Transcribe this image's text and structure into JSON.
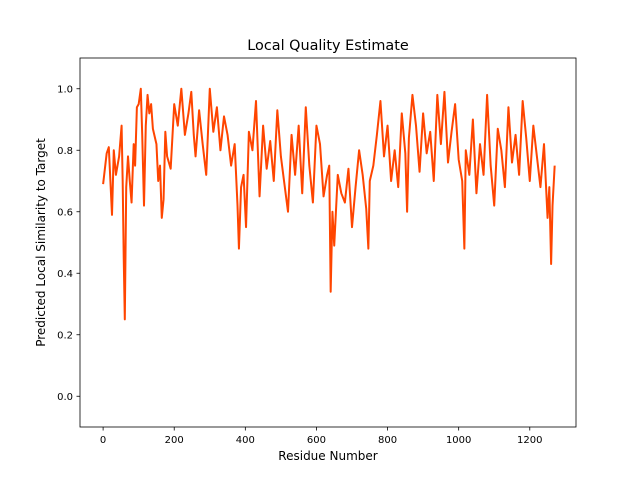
{
  "chart_data": {
    "type": "line",
    "title": "Local Quality Estimate",
    "xlabel": "Residue Number",
    "ylabel": "Predicted Local Similarity to Target",
    "xlim": [
      -65,
      1330
    ],
    "ylim": [
      -0.1,
      1.1
    ],
    "xticks": [
      0,
      200,
      400,
      600,
      800,
      1000,
      1200
    ],
    "yticks": [
      0.0,
      0.2,
      0.4,
      0.6,
      0.8,
      1.0
    ],
    "xtick_labels": [
      "0",
      "200",
      "400",
      "600",
      "800",
      "1000",
      "1200"
    ],
    "ytick_labels": [
      "0.0",
      "0.2",
      "0.4",
      "0.6",
      "0.8",
      "1.0"
    ],
    "grid": false,
    "series": [
      {
        "color": "#ff4500",
        "x": [
          0,
          10,
          16,
          25,
          30,
          36,
          45,
          52,
          55,
          58,
          61,
          65,
          70,
          75,
          80,
          86,
          90,
          95,
          100,
          106,
          110,
          115,
          120,
          125,
          130,
          135,
          140,
          150,
          155,
          160,
          165,
          170,
          175,
          180,
          190,
          200,
          210,
          220,
          230,
          240,
          248,
          255,
          260,
          270,
          280,
          290,
          300,
          310,
          320,
          330,
          340,
          350,
          360,
          370,
          378,
          382,
          388,
          395,
          402,
          410,
          420,
          430,
          440,
          450,
          460,
          470,
          480,
          490,
          500,
          510,
          520,
          530,
          540,
          550,
          560,
          570,
          580,
          590,
          600,
          610,
          620,
          630,
          636,
          640,
          645,
          650,
          660,
          670,
          680,
          690,
          700,
          710,
          720,
          730,
          740,
          746,
          750,
          760,
          770,
          780,
          790,
          800,
          810,
          820,
          830,
          840,
          850,
          855,
          860,
          870,
          880,
          890,
          900,
          910,
          920,
          930,
          940,
          950,
          960,
          970,
          980,
          990,
          1000,
          1010,
          1016,
          1020,
          1030,
          1040,
          1050,
          1060,
          1070,
          1080,
          1090,
          1100,
          1110,
          1120,
          1130,
          1140,
          1150,
          1160,
          1170,
          1180,
          1190,
          1200,
          1210,
          1220,
          1230,
          1240,
          1250,
          1255,
          1260,
          1264,
          1270
        ],
        "y": [
          0.69,
          0.79,
          0.81,
          0.59,
          0.8,
          0.72,
          0.78,
          0.88,
          0.7,
          0.45,
          0.25,
          0.68,
          0.78,
          0.7,
          0.63,
          0.82,
          0.75,
          0.94,
          0.95,
          1.0,
          0.85,
          0.62,
          0.88,
          0.98,
          0.92,
          0.95,
          0.87,
          0.82,
          0.7,
          0.75,
          0.58,
          0.64,
          0.86,
          0.78,
          0.74,
          0.95,
          0.88,
          1.0,
          0.85,
          0.92,
          0.99,
          0.85,
          0.78,
          0.93,
          0.82,
          0.72,
          1.0,
          0.86,
          0.94,
          0.8,
          0.91,
          0.85,
          0.75,
          0.82,
          0.62,
          0.48,
          0.68,
          0.72,
          0.55,
          0.86,
          0.8,
          0.96,
          0.65,
          0.88,
          0.74,
          0.83,
          0.7,
          0.93,
          0.78,
          0.69,
          0.6,
          0.85,
          0.72,
          0.88,
          0.66,
          0.94,
          0.75,
          0.63,
          0.88,
          0.82,
          0.65,
          0.72,
          0.75,
          0.34,
          0.6,
          0.49,
          0.72,
          0.66,
          0.63,
          0.74,
          0.55,
          0.68,
          0.8,
          0.72,
          0.61,
          0.48,
          0.7,
          0.75,
          0.85,
          0.96,
          0.78,
          0.88,
          0.7,
          0.8,
          0.68,
          0.92,
          0.79,
          0.6,
          0.84,
          0.98,
          0.88,
          0.73,
          0.92,
          0.79,
          0.86,
          0.7,
          0.98,
          0.82,
          0.99,
          0.76,
          0.86,
          0.95,
          0.77,
          0.7,
          0.48,
          0.8,
          0.72,
          0.9,
          0.66,
          0.82,
          0.72,
          0.98,
          0.75,
          0.62,
          0.87,
          0.8,
          0.68,
          0.94,
          0.76,
          0.85,
          0.72,
          0.96,
          0.84,
          0.7,
          0.88,
          0.78,
          0.68,
          0.82,
          0.58,
          0.68,
          0.43,
          0.62,
          0.75
        ]
      }
    ]
  }
}
